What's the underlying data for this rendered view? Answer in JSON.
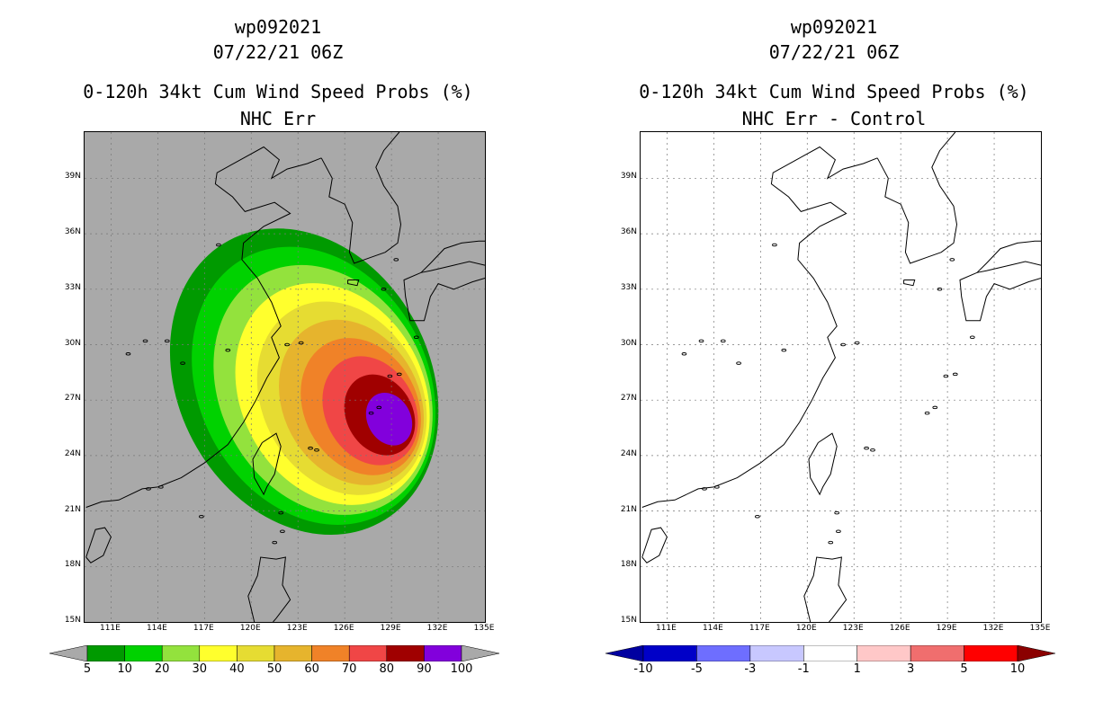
{
  "left_panel": {
    "storm_id": "wp092021",
    "datetime": "07/22/21 06Z",
    "title": "0-120h 34kt Cum Wind Speed Probs (%)",
    "subtitle": "NHC Err",
    "background_color": "#a9a9a9",
    "colorbar": {
      "colors": [
        "#009a00",
        "#00d200",
        "#93e23d",
        "#ffff2d",
        "#e6dc32",
        "#e6b42d",
        "#f08228",
        "#f04646",
        "#a00000",
        "#8200dc"
      ],
      "tick_labels": [
        "5",
        "10",
        "20",
        "30",
        "40",
        "50",
        "60",
        "70",
        "80",
        "90",
        "100"
      ],
      "under_color": "#a9a9a9",
      "over_color": "#a9a9a9"
    }
  },
  "right_panel": {
    "storm_id": "wp092021",
    "datetime": "07/22/21 06Z",
    "title": "0-120h 34kt Cum Wind Speed Probs (%)",
    "subtitle": "NHC Err - Control",
    "background_color": "#ffffff",
    "colorbar": {
      "colors": [
        "#0000c8",
        "#6e6eff",
        "#c8c8ff",
        "#ffffff",
        "#ffc8c8",
        "#f06e6e",
        "#ff0000"
      ],
      "tick_labels": [
        "-10",
        "-5",
        "-3",
        "-1",
        "1",
        "3",
        "5",
        "10"
      ],
      "under_color": "#0000a0",
      "over_color": "#8b0000"
    }
  },
  "axes": {
    "lat_labels": [
      "39N",
      "36N",
      "33N",
      "30N",
      "27N",
      "24N",
      "21N",
      "18N",
      "15N"
    ],
    "lon_labels": [
      "111E",
      "114E",
      "117E",
      "120E",
      "123E",
      "126E",
      "129E",
      "132E",
      "135E"
    ],
    "lat_range": [
      15,
      41.5
    ],
    "lon_range": [
      109.3,
      135
    ]
  },
  "probability_field": {
    "levels": [
      5,
      10,
      20,
      30,
      40,
      50,
      60,
      70,
      80,
      90
    ],
    "colors": [
      "#009a00",
      "#00d200",
      "#93e23d",
      "#ffff2d",
      "#e6dc32",
      "#e6b42d",
      "#f08228",
      "#f04646",
      "#a00000",
      "#8200dc"
    ]
  }
}
